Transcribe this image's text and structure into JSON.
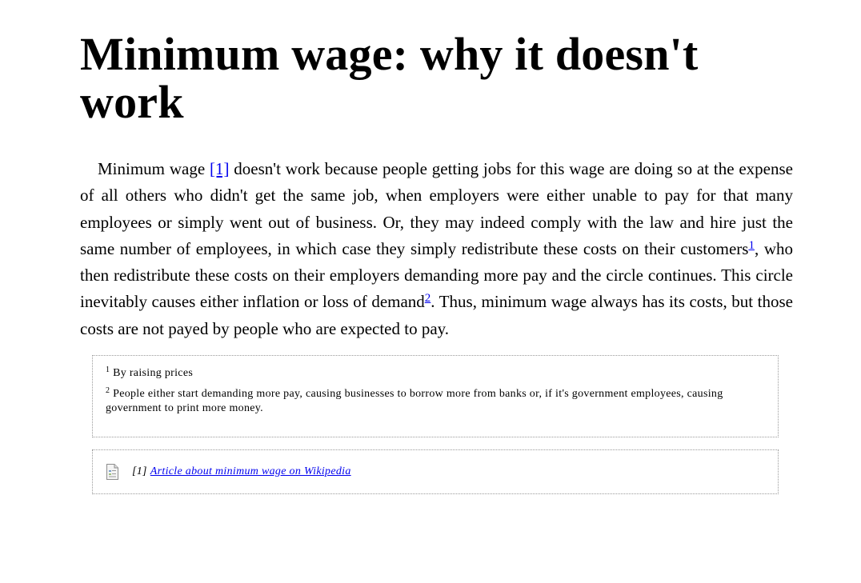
{
  "article": {
    "title": "Minimum wage: why it doesn't work",
    "paragraph": {
      "part1": "Minimum wage ",
      "ref_marker": "[1]",
      "part2": " doesn't work because people getting jobs for this wage are doing so at the expense of all others who didn't get the same job, when employers were either unable to pay for that many employees or simply went out of business. Or, they may indeed comply with the law and hire just the same number of employees, in which case they simply redistribute these costs on their customers",
      "fn1_marker": "1",
      "part3": ", who then redistribute these costs on their employers demanding more pay and the circle continues. This circle inevitably causes either inflation or loss of demand",
      "fn2_marker": "2",
      "part4": ". Thus, minimum wage always has its costs, but those costs are not payed by people who are expected to pay."
    }
  },
  "footnotes": [
    {
      "number": "1",
      "text": " By raising prices"
    },
    {
      "number": "2",
      "text": " People either start demanding more pay, causing businesses to borrow more from banks or, if it's government employees, causing government to print more money."
    }
  ],
  "references": {
    "icon": "document-icon",
    "label": "[1]",
    "link_text": "Article about minimum wage on Wikipedia"
  },
  "colors": {
    "link": "#0000ee",
    "text": "#000000",
    "border": "#9a9a9a"
  }
}
